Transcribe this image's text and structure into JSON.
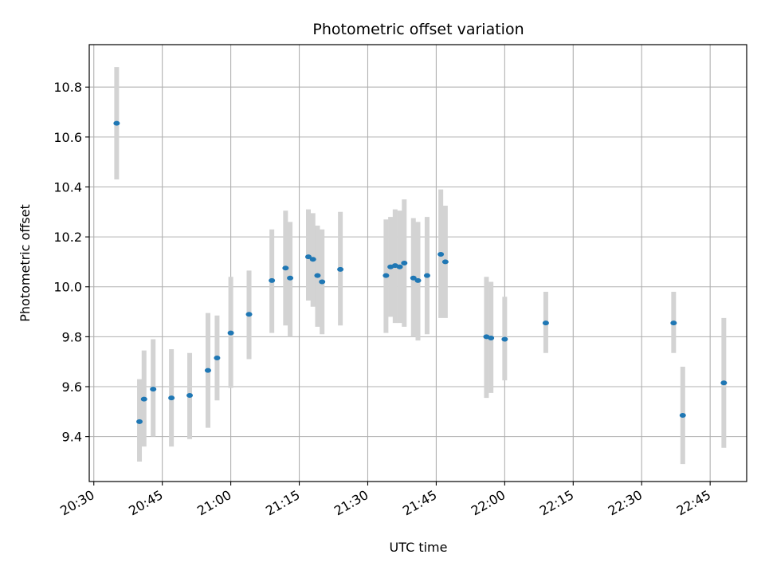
{
  "chart_data": {
    "type": "scatter",
    "title": "Photometric offset variation",
    "xlabel": "UTC time",
    "ylabel": "Photometric offset",
    "x_ticks": [
      "20:30",
      "20:45",
      "21:00",
      "21:15",
      "21:30",
      "21:45",
      "22:00",
      "22:15",
      "22:30",
      "22:45"
    ],
    "x_tick_values": [
      "20:30",
      "20:45",
      "21:00",
      "21:15",
      "21:30",
      "21:45",
      "22:00",
      "22:15",
      "22:30",
      "22:45"
    ],
    "y_ticks": [
      "9.4",
      "9.6",
      "9.8",
      "10.0",
      "10.2",
      "10.4",
      "10.6",
      "10.8"
    ],
    "y_tick_values": [
      9.4,
      9.6,
      9.8,
      10.0,
      10.2,
      10.4,
      10.6,
      10.8
    ],
    "xlim": [
      "20:29",
      "22:53"
    ],
    "ylim": [
      9.22,
      10.97
    ],
    "grid": true,
    "colors": {
      "marker": "#1f77b4",
      "errorbar": "#d3d3d3",
      "grid": "#b0b0b0"
    },
    "points": [
      {
        "t": "20:35",
        "y": 10.655,
        "lo": 10.43,
        "hi": 10.88
      },
      {
        "t": "20:40",
        "y": 9.46,
        "lo": 9.3,
        "hi": 9.63
      },
      {
        "t": "20:41",
        "y": 9.55,
        "lo": 9.36,
        "hi": 9.745
      },
      {
        "t": "20:43",
        "y": 9.59,
        "lo": 9.4,
        "hi": 9.79
      },
      {
        "t": "20:47",
        "y": 9.555,
        "lo": 9.36,
        "hi": 9.75
      },
      {
        "t": "20:51",
        "y": 9.565,
        "lo": 9.39,
        "hi": 9.735
      },
      {
        "t": "20:55",
        "y": 9.665,
        "lo": 9.435,
        "hi": 9.895
      },
      {
        "t": "20:57",
        "y": 9.715,
        "lo": 9.545,
        "hi": 9.885
      },
      {
        "t": "21:00",
        "y": 9.815,
        "lo": 9.595,
        "hi": 10.04
      },
      {
        "t": "21:04",
        "y": 9.89,
        "lo": 9.71,
        "hi": 10.065
      },
      {
        "t": "21:09",
        "y": 10.025,
        "lo": 9.815,
        "hi": 10.23
      },
      {
        "t": "21:12",
        "y": 10.075,
        "lo": 9.845,
        "hi": 10.305
      },
      {
        "t": "21:13",
        "y": 10.035,
        "lo": 9.8,
        "hi": 10.26
      },
      {
        "t": "21:17",
        "y": 10.12,
        "lo": 9.945,
        "hi": 10.31
      },
      {
        "t": "21:18",
        "y": 10.11,
        "lo": 9.92,
        "hi": 10.295
      },
      {
        "t": "21:19",
        "y": 10.045,
        "lo": 9.84,
        "hi": 10.245
      },
      {
        "t": "21:20",
        "y": 10.02,
        "lo": 9.81,
        "hi": 10.23
      },
      {
        "t": "21:24",
        "y": 10.07,
        "lo": 9.845,
        "hi": 10.3
      },
      {
        "t": "21:34",
        "y": 10.045,
        "lo": 9.815,
        "hi": 10.27
      },
      {
        "t": "21:35",
        "y": 10.08,
        "lo": 9.88,
        "hi": 10.28
      },
      {
        "t": "21:36",
        "y": 10.085,
        "lo": 9.855,
        "hi": 10.31
      },
      {
        "t": "21:37",
        "y": 10.08,
        "lo": 9.855,
        "hi": 10.305
      },
      {
        "t": "21:38",
        "y": 10.095,
        "lo": 9.84,
        "hi": 10.35
      },
      {
        "t": "21:40",
        "y": 10.035,
        "lo": 9.8,
        "hi": 10.275
      },
      {
        "t": "21:41",
        "y": 10.025,
        "lo": 9.785,
        "hi": 10.26
      },
      {
        "t": "21:43",
        "y": 10.045,
        "lo": 9.81,
        "hi": 10.28
      },
      {
        "t": "21:46",
        "y": 10.13,
        "lo": 9.875,
        "hi": 10.39
      },
      {
        "t": "21:47",
        "y": 10.1,
        "lo": 9.875,
        "hi": 10.325
      },
      {
        "t": "21:56",
        "y": 9.8,
        "lo": 9.555,
        "hi": 10.04
      },
      {
        "t": "21:57",
        "y": 9.795,
        "lo": 9.575,
        "hi": 10.02
      },
      {
        "t": "22:00",
        "y": 9.79,
        "lo": 9.625,
        "hi": 9.96
      },
      {
        "t": "22:09",
        "y": 9.855,
        "lo": 9.735,
        "hi": 9.98
      },
      {
        "t": "22:37",
        "y": 9.855,
        "lo": 9.735,
        "hi": 9.98
      },
      {
        "t": "22:39",
        "y": 9.485,
        "lo": 9.29,
        "hi": 9.68
      },
      {
        "t": "22:48",
        "y": 9.615,
        "lo": 9.355,
        "hi": 9.875
      }
    ]
  }
}
